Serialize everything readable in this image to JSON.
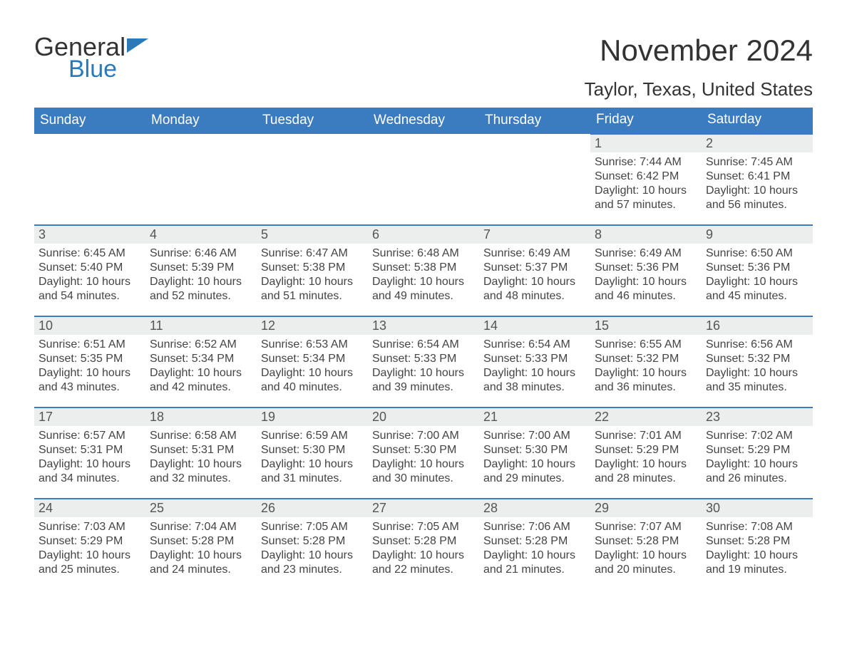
{
  "logo": {
    "general": "General",
    "blue": "Blue"
  },
  "title": "November 2024",
  "location": "Taylor, Texas, United States",
  "colors": {
    "header_bg": "#3b7bbf",
    "header_text": "#ffffff",
    "daynum_bg": "#eceded",
    "border_top": "#3b7bbf",
    "text": "#333333",
    "accent_blue": "#2a7ab9"
  },
  "days_of_week": [
    "Sunday",
    "Monday",
    "Tuesday",
    "Wednesday",
    "Thursday",
    "Friday",
    "Saturday"
  ],
  "weeks": [
    [
      null,
      null,
      null,
      null,
      null,
      {
        "n": "1",
        "sunrise": "7:44 AM",
        "sunset": "6:42 PM",
        "daylight": "10 hours and 57 minutes."
      },
      {
        "n": "2",
        "sunrise": "7:45 AM",
        "sunset": "6:41 PM",
        "daylight": "10 hours and 56 minutes."
      }
    ],
    [
      {
        "n": "3",
        "sunrise": "6:45 AM",
        "sunset": "5:40 PM",
        "daylight": "10 hours and 54 minutes."
      },
      {
        "n": "4",
        "sunrise": "6:46 AM",
        "sunset": "5:39 PM",
        "daylight": "10 hours and 52 minutes."
      },
      {
        "n": "5",
        "sunrise": "6:47 AM",
        "sunset": "5:38 PM",
        "daylight": "10 hours and 51 minutes."
      },
      {
        "n": "6",
        "sunrise": "6:48 AM",
        "sunset": "5:38 PM",
        "daylight": "10 hours and 49 minutes."
      },
      {
        "n": "7",
        "sunrise": "6:49 AM",
        "sunset": "5:37 PM",
        "daylight": "10 hours and 48 minutes."
      },
      {
        "n": "8",
        "sunrise": "6:49 AM",
        "sunset": "5:36 PM",
        "daylight": "10 hours and 46 minutes."
      },
      {
        "n": "9",
        "sunrise": "6:50 AM",
        "sunset": "5:36 PM",
        "daylight": "10 hours and 45 minutes."
      }
    ],
    [
      {
        "n": "10",
        "sunrise": "6:51 AM",
        "sunset": "5:35 PM",
        "daylight": "10 hours and 43 minutes."
      },
      {
        "n": "11",
        "sunrise": "6:52 AM",
        "sunset": "5:34 PM",
        "daylight": "10 hours and 42 minutes."
      },
      {
        "n": "12",
        "sunrise": "6:53 AM",
        "sunset": "5:34 PM",
        "daylight": "10 hours and 40 minutes."
      },
      {
        "n": "13",
        "sunrise": "6:54 AM",
        "sunset": "5:33 PM",
        "daylight": "10 hours and 39 minutes."
      },
      {
        "n": "14",
        "sunrise": "6:54 AM",
        "sunset": "5:33 PM",
        "daylight": "10 hours and 38 minutes."
      },
      {
        "n": "15",
        "sunrise": "6:55 AM",
        "sunset": "5:32 PM",
        "daylight": "10 hours and 36 minutes."
      },
      {
        "n": "16",
        "sunrise": "6:56 AM",
        "sunset": "5:32 PM",
        "daylight": "10 hours and 35 minutes."
      }
    ],
    [
      {
        "n": "17",
        "sunrise": "6:57 AM",
        "sunset": "5:31 PM",
        "daylight": "10 hours and 34 minutes."
      },
      {
        "n": "18",
        "sunrise": "6:58 AM",
        "sunset": "5:31 PM",
        "daylight": "10 hours and 32 minutes."
      },
      {
        "n": "19",
        "sunrise": "6:59 AM",
        "sunset": "5:30 PM",
        "daylight": "10 hours and 31 minutes."
      },
      {
        "n": "20",
        "sunrise": "7:00 AM",
        "sunset": "5:30 PM",
        "daylight": "10 hours and 30 minutes."
      },
      {
        "n": "21",
        "sunrise": "7:00 AM",
        "sunset": "5:30 PM",
        "daylight": "10 hours and 29 minutes."
      },
      {
        "n": "22",
        "sunrise": "7:01 AM",
        "sunset": "5:29 PM",
        "daylight": "10 hours and 28 minutes."
      },
      {
        "n": "23",
        "sunrise": "7:02 AM",
        "sunset": "5:29 PM",
        "daylight": "10 hours and 26 minutes."
      }
    ],
    [
      {
        "n": "24",
        "sunrise": "7:03 AM",
        "sunset": "5:29 PM",
        "daylight": "10 hours and 25 minutes."
      },
      {
        "n": "25",
        "sunrise": "7:04 AM",
        "sunset": "5:28 PM",
        "daylight": "10 hours and 24 minutes."
      },
      {
        "n": "26",
        "sunrise": "7:05 AM",
        "sunset": "5:28 PM",
        "daylight": "10 hours and 23 minutes."
      },
      {
        "n": "27",
        "sunrise": "7:05 AM",
        "sunset": "5:28 PM",
        "daylight": "10 hours and 22 minutes."
      },
      {
        "n": "28",
        "sunrise": "7:06 AM",
        "sunset": "5:28 PM",
        "daylight": "10 hours and 21 minutes."
      },
      {
        "n": "29",
        "sunrise": "7:07 AM",
        "sunset": "5:28 PM",
        "daylight": "10 hours and 20 minutes."
      },
      {
        "n": "30",
        "sunrise": "7:08 AM",
        "sunset": "5:28 PM",
        "daylight": "10 hours and 19 minutes."
      }
    ]
  ],
  "labels": {
    "sunrise": "Sunrise:",
    "sunset": "Sunset:",
    "daylight": "Daylight:"
  }
}
